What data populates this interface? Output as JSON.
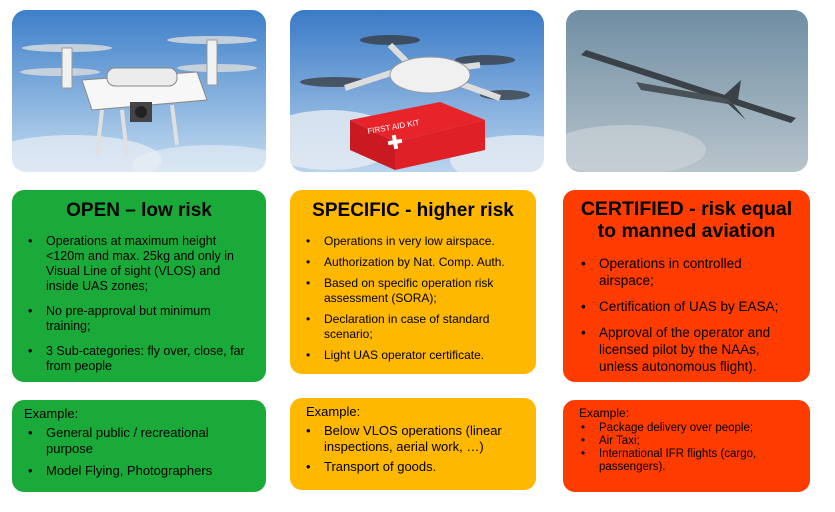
{
  "columns": [
    {
      "title": "OPEN – low risk",
      "bullets": [
        "Operations at maximum height <120m and max. 25kg and only in Visual Line of sight (VLOS) and inside UAS zones;",
        "No pre-approval but minimum training;",
        "3 Sub-categories: fly over, close, far from people"
      ],
      "example_title": "Example:",
      "examples": [
        "General public / recreational purpose",
        "Model Flying, Photographers"
      ],
      "color": "#1aaa3a"
    },
    {
      "title": "SPECIFIC - higher risk",
      "bullets": [
        "Operations in very low airspace.",
        "Authorization by Nat. Comp. Auth.",
        "Based on specific operation risk assessment (SORA);",
        "Declaration in case of standard scenario;",
        "Light UAS operator certificate."
      ],
      "example_title": "Example:",
      "examples": [
        "Below VLOS operations (linear inspections, aerial work, …)",
        "Transport of goods."
      ],
      "color": "#ffb800"
    },
    {
      "title": "CERTIFIED - risk equal to manned aviation",
      "bullets": [
        "Operations in controlled airspace;",
        "Certification of UAS by EASA;",
        "Approval of the operator and licensed pilot by the NAAs, unless autonomous flight)."
      ],
      "example_title": "Example:",
      "examples": [
        "Package delivery over people;",
        "Air Taxi;",
        "International IFR flights (cargo, passengers)."
      ],
      "color": "#ff3c00"
    }
  ],
  "first_aid_label": "FIRST AID KIT"
}
